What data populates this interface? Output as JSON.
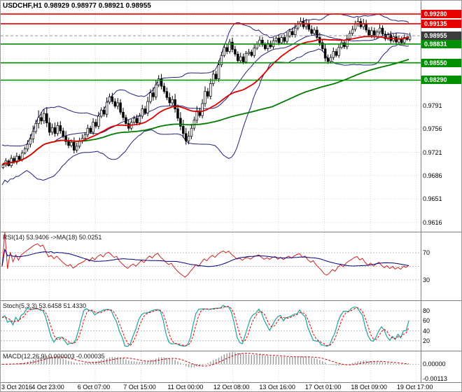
{
  "window": {
    "title": "USDCHF,H1 0.98929 0.98977 0.98921 0.98955"
  },
  "colors": {
    "grid": "#d8d8d8",
    "level_dotted": "#c0c0c0",
    "bull": "#ffffff",
    "bear": "#000000",
    "candle_border": "#000000",
    "bollinger": "#202080",
    "ma_fast": "#dd0000",
    "ma_slow": "#007a00",
    "resistance": "#e60000",
    "support": "#009000",
    "current": "#3c3c3c",
    "current_line": "#9999aa",
    "rsi": "#cc2222",
    "rsi_ma": "#000080",
    "stoch": "#1fa39b",
    "stoch_signal": "#dd0000",
    "macd_hist": "#9a9a9a",
    "macd_signal": "#cc0000"
  },
  "main_chart": {
    "price_axis_labels": [
      "0.9791",
      "0.9756",
      "0.9721",
      "0.9686",
      "0.9651",
      "0.9616"
    ],
    "grid": {
      "price_start": 0.9616,
      "price_step": 0.0035
    },
    "scale": {
      "max": 0.9948,
      "min": 0.9602
    },
    "levels": [
      {
        "label": "0.99280",
        "value": 0.9928,
        "type": "resistance"
      },
      {
        "label": "0.99135",
        "value": 0.99135,
        "type": "resistance"
      },
      {
        "label": "0.98955",
        "value": 0.98955,
        "type": "current"
      },
      {
        "label": "0.98831",
        "value": 0.98831,
        "type": "support"
      },
      {
        "label": "0.98550",
        "value": 0.9855,
        "type": "support"
      },
      {
        "label": "0.98290",
        "value": 0.9829,
        "type": "support"
      }
    ]
  },
  "indicator_panels": {
    "rsi": {
      "label": "RSI(14) 53.9406 ->MA(18) 50.0251",
      "period": 14,
      "ma_period": 18,
      "levels": [
        70,
        50,
        30
      ],
      "axis_labels": [
        {
          "text": "70",
          "value": 70
        },
        {
          "text": "30",
          "value": 30
        }
      ],
      "scale": {
        "min": 0,
        "max": 100
      }
    },
    "stochastic": {
      "label": "Stoch(5,3,3) 53.6458 51.4330",
      "k": 5,
      "slowing": 3,
      "d": 3,
      "axis_labels": [
        {
          "text": "80",
          "value": 80
        },
        {
          "text": "60",
          "value": 60
        },
        {
          "text": "40",
          "value": 40
        },
        {
          "text": "20",
          "value": 20
        }
      ],
      "scale": {
        "min": 0,
        "max": 100
      }
    },
    "macd": {
      "label": "MACD(12,26,9) 0.000003 -0.000035",
      "fast": 12,
      "slow": 26,
      "signal": 9,
      "axis_labels": [
        {
          "text": "0.00000",
          "value": 0
        },
        {
          "text": "-0.00113",
          "value": -0.00113
        }
      ],
      "scale": {
        "max": 0.0009,
        "min": -0.00125
      }
    }
  },
  "chart_data": {
    "type": "candlestick",
    "symbol": "USDCHF",
    "timeframe": "H1",
    "ohlc_current": {
      "open": "0.98929",
      "high": "0.98977",
      "low": "0.98921",
      "close": "0.98955"
    },
    "x_labels": [
      "3 Oct 2016",
      "4 Oct 23:00",
      "6 Oct 07:00",
      "7 Oct 15:00",
      "11 Oct 00:00",
      "12 Oct 08:00",
      "13 Oct 16:00",
      "17 Oct 01:00",
      "18 Oct 09:00",
      "19 Oct 17:00"
    ],
    "overlays": {
      "bollinger": {
        "period": 20,
        "deviation": 2
      },
      "ma_fast": {
        "period": 30
      },
      "ma_slow": {
        "period": 100
      }
    },
    "closes": [
      0.9702,
      0.9708,
      0.9701,
      0.9712,
      0.9706,
      0.9715,
      0.971,
      0.972,
      0.9726,
      0.9733,
      0.9741,
      0.9752,
      0.9764,
      0.9773,
      0.9768,
      0.9779,
      0.9765,
      0.9751,
      0.9758,
      0.9749,
      0.9761,
      0.9753,
      0.9745,
      0.9737,
      0.9731,
      0.9736,
      0.9724,
      0.973,
      0.9738,
      0.9742,
      0.9747,
      0.9757,
      0.9751,
      0.9766,
      0.976,
      0.9775,
      0.9784,
      0.9778,
      0.9796,
      0.9804,
      0.9797,
      0.979,
      0.9795,
      0.9781,
      0.9773,
      0.9764,
      0.9757,
      0.9766,
      0.9772,
      0.9765,
      0.9775,
      0.9786,
      0.978,
      0.9797,
      0.981,
      0.9804,
      0.9822,
      0.9831,
      0.982,
      0.9812,
      0.9803,
      0.9795,
      0.98,
      0.9786,
      0.9772,
      0.976,
      0.9749,
      0.9738,
      0.9745,
      0.9757,
      0.9769,
      0.9783,
      0.9776,
      0.9794,
      0.9812,
      0.9805,
      0.9824,
      0.9838,
      0.9831,
      0.9852,
      0.9866,
      0.9878,
      0.9872,
      0.9886,
      0.9875,
      0.9868,
      0.9858,
      0.9864,
      0.9856,
      0.9869,
      0.9871,
      0.9866,
      0.9877,
      0.9883,
      0.9889,
      0.9882,
      0.9876,
      0.9884,
      0.9879,
      0.9888,
      0.9892,
      0.9885,
      0.9893,
      0.9887,
      0.9895,
      0.9902,
      0.9897,
      0.9907,
      0.9913,
      0.9917,
      0.9909,
      0.9914,
      0.9905,
      0.9899,
      0.9904,
      0.9893,
      0.9885,
      0.9876,
      0.9862,
      0.9857,
      0.9863,
      0.9872,
      0.9866,
      0.9878,
      0.9885,
      0.9879,
      0.9891,
      0.9899,
      0.9905,
      0.9913,
      0.9917,
      0.9909,
      0.9914,
      0.9904,
      0.9896,
      0.9903,
      0.9894,
      0.9901,
      0.9907,
      0.9898,
      0.9891,
      0.9897,
      0.9888,
      0.9894,
      0.9886,
      0.9891,
      0.9885,
      0.9893,
      0.989,
      0.98955
    ],
    "wick_factors_1e4": [
      5,
      7,
      4,
      8,
      6,
      9,
      5,
      7,
      6,
      10,
      12,
      15,
      9,
      18,
      14,
      11,
      16,
      13,
      10,
      12,
      9,
      11,
      8,
      13,
      10,
      7,
      12,
      9,
      8,
      10,
      7,
      9,
      6,
      10,
      8,
      11,
      7,
      9,
      12,
      8,
      10,
      8,
      12,
      9,
      11,
      7,
      10,
      8,
      6,
      9,
      8,
      10,
      7,
      12,
      9,
      14,
      11,
      9,
      12,
      8,
      10,
      12,
      9,
      14,
      11,
      15,
      16,
      14,
      13,
      11,
      9,
      12,
      8,
      11,
      13,
      9,
      12,
      10,
      8,
      11,
      9,
      7,
      10,
      8,
      11,
      9,
      7,
      10,
      8,
      6,
      8,
      6,
      9,
      7,
      10,
      8,
      6,
      9,
      7,
      8,
      7,
      9,
      6,
      8,
      10,
      7,
      9,
      11,
      8,
      10,
      9,
      11,
      8,
      10,
      7,
      9,
      12,
      10,
      13,
      9,
      8,
      10,
      7,
      9,
      6,
      8,
      10,
      7,
      9,
      8,
      10,
      8,
      11,
      9,
      7,
      10,
      8,
      6,
      9,
      7,
      8,
      6,
      9,
      7,
      10,
      8,
      6,
      8,
      5,
      7
    ]
  }
}
